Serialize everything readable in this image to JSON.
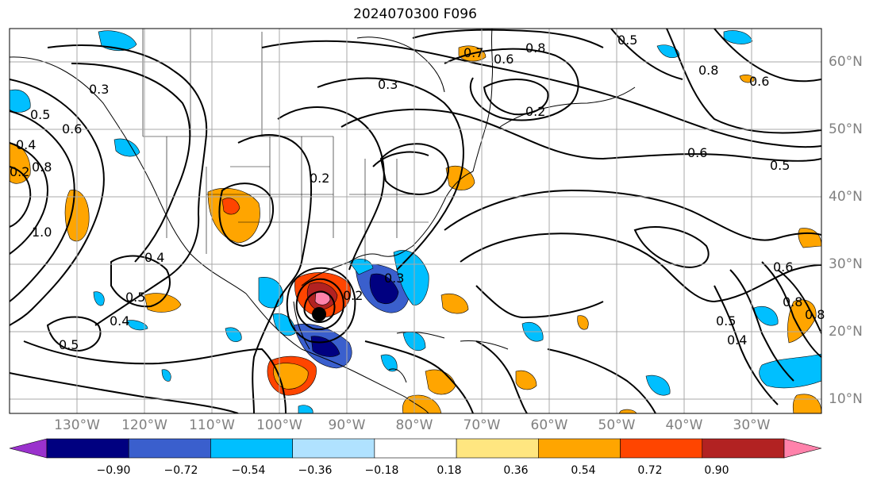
{
  "title": "2024070300 F096",
  "lon_labels": [
    "130°W",
    "120°W",
    "110°W",
    "100°W",
    "90°W",
    "80°W",
    "70°W",
    "60°W",
    "50°W",
    "40°W",
    "30°W"
  ],
  "lat_labels": [
    "60°N",
    "50°N",
    "40°N",
    "30°N",
    "20°N",
    "10°N"
  ],
  "colorbar": {
    "ticks": [
      "−0.90",
      "−0.72",
      "−0.54",
      "−0.36",
      "−0.18",
      "0.18",
      "0.36",
      "0.54",
      "0.72",
      "0.90"
    ],
    "colors": [
      "#9a32cd",
      "#000080",
      "#3a5fcd",
      "#00bfff",
      "#b0e2ff",
      "#ffffff",
      "#ffe680",
      "#ffa500",
      "#ff4500",
      "#b22222",
      "#ff82ab"
    ]
  },
  "contour_labels": [
    "0.3",
    "0.5",
    "0.6",
    "0.4",
    "0.8",
    "0.2",
    "1.0",
    "0.7",
    "0.6",
    "0.8",
    "0.2",
    "0.6",
    "0.5",
    "0.6",
    "0.8",
    "0.5",
    "0.4",
    "0.5",
    "0.3",
    "0.2",
    "0.3",
    "0.2",
    "0.4",
    "0.5",
    "0.4",
    "0.6",
    "0.5",
    "0.8",
    "0.8"
  ]
}
